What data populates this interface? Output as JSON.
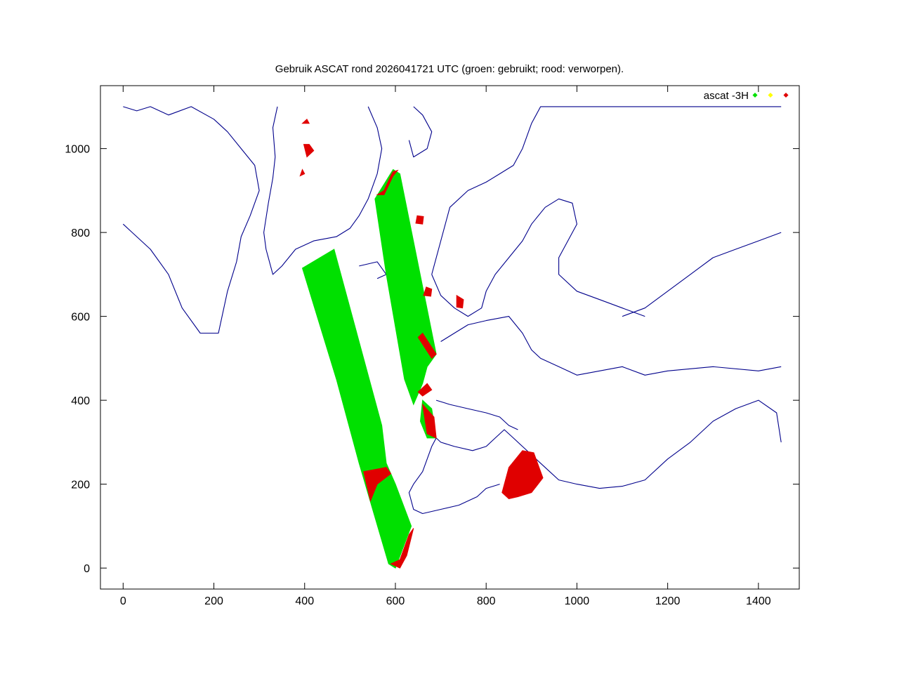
{
  "chart_data": {
    "type": "scatter",
    "title": "Gebruik ASCAT rond 2026041721 UTC (groen: gebruikt; rood: verworpen).",
    "xlabel": "",
    "ylabel": "",
    "xlim": [
      -50,
      1490
    ],
    "ylim": [
      -50,
      1150
    ],
    "x_ticks": [
      0,
      200,
      400,
      600,
      800,
      1000,
      1200,
      1400
    ],
    "y_ticks": [
      0,
      200,
      400,
      600,
      800,
      1000
    ],
    "grid": false,
    "legend_position": "top-right",
    "legend": {
      "label": "ascat -3H",
      "markers": [
        {
          "color": "#00e000"
        },
        {
          "color": "#ffff00"
        },
        {
          "color": "#e00000"
        }
      ]
    },
    "colors": {
      "used": "#00e000",
      "rejected": "#e00000",
      "coast": "#00008b"
    },
    "series": [
      {
        "role": "used",
        "color": "#00e000",
        "swaths": [
          [
            [
              395,
              715
            ],
            [
              465,
              760
            ],
            [
              570,
              340
            ],
            [
              580,
              250
            ],
            [
              600,
              200
            ],
            [
              635,
              100
            ],
            [
              600,
              0
            ],
            [
              585,
              10
            ],
            [
              520,
              250
            ],
            [
              470,
              450
            ]
          ],
          [
            [
              555,
              880
            ],
            [
              595,
              950
            ],
            [
              610,
              940
            ],
            [
              690,
              510
            ],
            [
              670,
              480
            ],
            [
              660,
              440
            ],
            [
              640,
              390
            ],
            [
              630,
              420
            ],
            [
              620,
              450
            ],
            [
              580,
              700
            ]
          ],
          [
            [
              660,
              400
            ],
            [
              680,
              380
            ],
            [
              690,
              310
            ],
            [
              670,
              310
            ],
            [
              655,
              350
            ]
          ],
          [
            [
              850,
              180
            ],
            [
              905,
              240
            ],
            [
              920,
              210
            ]
          ]
        ]
      },
      {
        "role": "rejected",
        "color": "#e00000",
        "regions": [
          [
            [
              405,
              1070
            ],
            [
              410,
              1060
            ],
            [
              395,
              1060
            ]
          ],
          [
            [
              410,
              1010
            ],
            [
              420,
              995
            ],
            [
              405,
              980
            ],
            [
              398,
              1010
            ]
          ],
          [
            [
              395,
              950
            ],
            [
              400,
              940
            ],
            [
              390,
              935
            ]
          ],
          [
            [
              560,
              890
            ],
            [
              575,
              900
            ],
            [
              590,
              935
            ],
            [
              595,
              945
            ],
            [
              605,
              948
            ],
            [
              595,
              935
            ],
            [
              575,
              890
            ]
          ],
          [
            [
              648,
              840
            ],
            [
              662,
              838
            ],
            [
              660,
              820
            ],
            [
              645,
              822
            ]
          ],
          [
            [
              668,
              670
            ],
            [
              680,
              665
            ],
            [
              678,
              648
            ],
            [
              662,
              650
            ]
          ],
          [
            [
              735,
              650
            ],
            [
              750,
              640
            ],
            [
              748,
              620
            ],
            [
              735,
              622
            ]
          ],
          [
            [
              650,
              550
            ],
            [
              660,
              560
            ],
            [
              690,
              510
            ],
            [
              680,
              500
            ]
          ],
          [
            [
              650,
              420
            ],
            [
              670,
              440
            ],
            [
              680,
              425
            ],
            [
              660,
              410
            ]
          ],
          [
            [
              660,
              390
            ],
            [
              685,
              360
            ],
            [
              690,
              310
            ],
            [
              670,
              320
            ]
          ],
          [
            [
              530,
              230
            ],
            [
              580,
              240
            ],
            [
              590,
              225
            ],
            [
              560,
              200
            ],
            [
              545,
              160
            ]
          ],
          [
            [
              590,
              10
            ],
            [
              610,
              20
            ],
            [
              630,
              80
            ],
            [
              640,
              95
            ],
            [
              625,
              30
            ],
            [
              610,
              0
            ]
          ],
          [
            [
              835,
              180
            ],
            [
              850,
              240
            ],
            [
              880,
              280
            ],
            [
              905,
              275
            ],
            [
              925,
              215
            ],
            [
              900,
              180
            ],
            [
              870,
              170
            ],
            [
              850,
              165
            ]
          ]
        ]
      }
    ]
  }
}
